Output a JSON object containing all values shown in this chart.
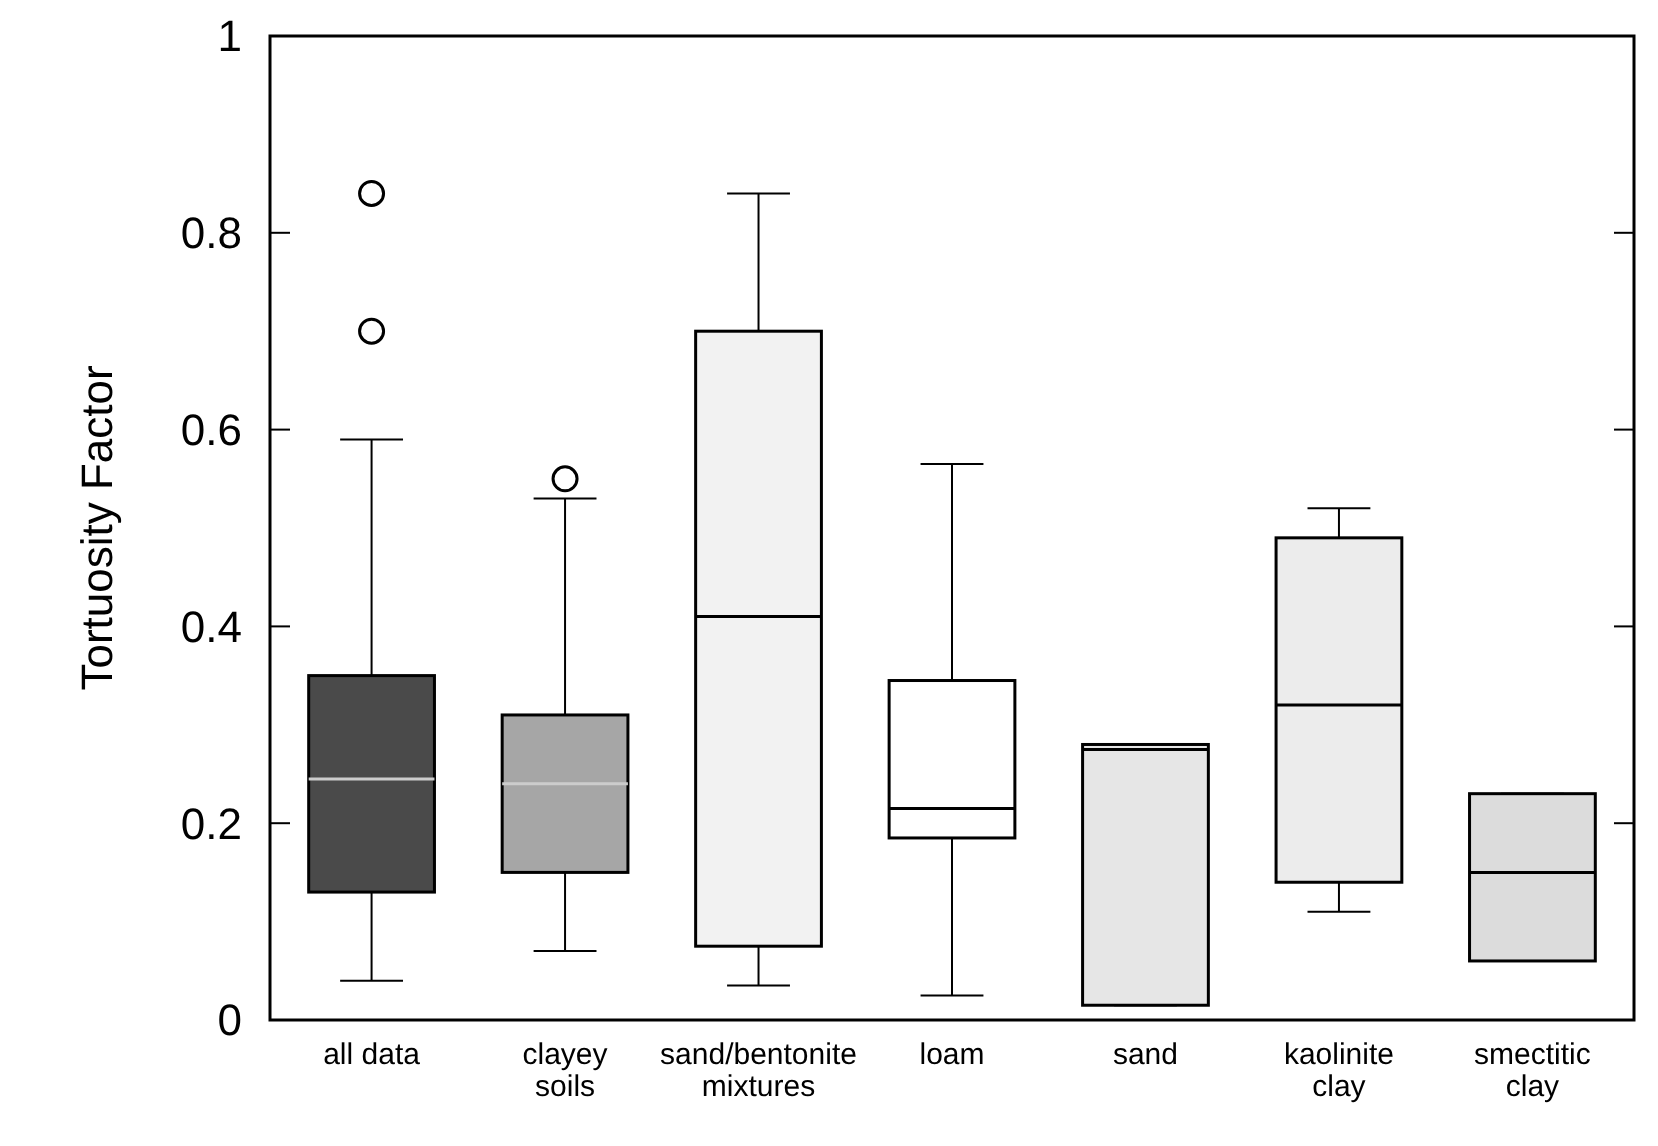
{
  "chart_data": {
    "type": "box",
    "ylabel": "Tortuosity Factor",
    "categories": [
      "all data",
      "clayey\nsoils",
      "sand/bentonite\nmixtures",
      "loam",
      "sand",
      "kaolinite\nclay",
      "smectitic\nclay"
    ],
    "colors": [
      "#4a4a4a",
      "#a6a6a6",
      "#f2f2f2",
      "#ffffff",
      "#e6e6e6",
      "#ececec",
      "#dcdcdc"
    ],
    "boxes": [
      {
        "low": 0.04,
        "q1": 0.13,
        "median": 0.245,
        "q3": 0.35,
        "high": 0.59,
        "outliers": [
          0.84,
          0.7
        ]
      },
      {
        "low": 0.07,
        "q1": 0.15,
        "median": 0.24,
        "q3": 0.31,
        "high": 0.53,
        "outliers": [
          0.55
        ]
      },
      {
        "low": 0.035,
        "q1": 0.075,
        "median": 0.41,
        "q3": 0.7,
        "high": 0.84
      },
      {
        "low": 0.025,
        "q1": 0.185,
        "median": 0.215,
        "q3": 0.345,
        "high": 0.565
      },
      {
        "low": 0.015,
        "q1": 0.015,
        "median": 0.275,
        "q3": 0.28,
        "high": 0.28
      },
      {
        "low": 0.11,
        "q1": 0.14,
        "median": 0.32,
        "q3": 0.49,
        "high": 0.52
      },
      {
        "low": 0.06,
        "q1": 0.06,
        "median": 0.15,
        "q3": 0.23,
        "high": 0.23
      }
    ],
    "ylim": [
      0,
      1
    ],
    "yticks": [
      0,
      0.2,
      0.4,
      0.6,
      0.8,
      1
    ],
    "grid": false
  }
}
